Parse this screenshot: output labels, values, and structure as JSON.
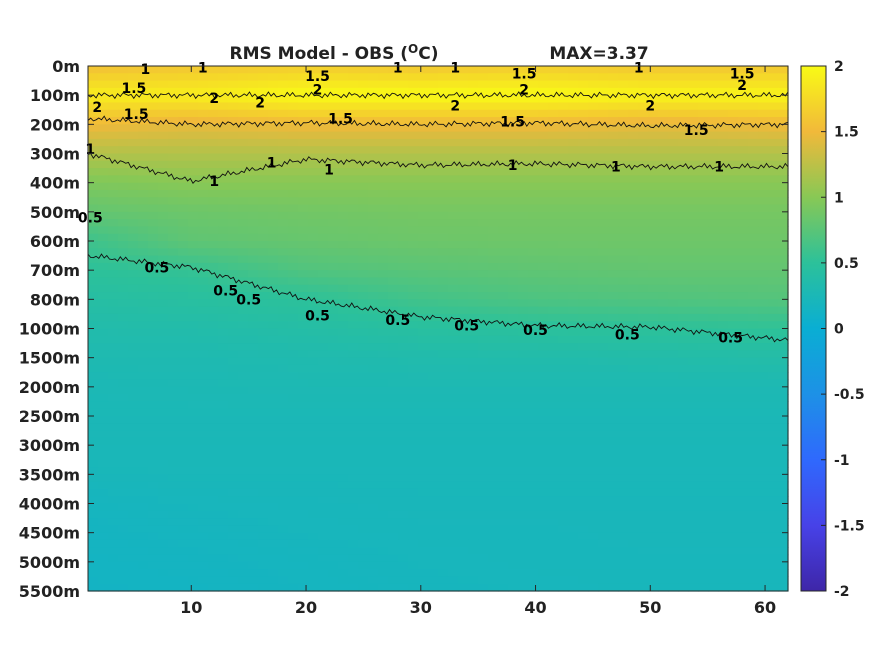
{
  "chart_data": {
    "type": "heatmap",
    "title": "RMS Model - OBS (",
    "title_unit": "O",
    "title_suffix": "C)",
    "max_label": "MAX=3.37",
    "xlim": [
      1,
      62
    ],
    "x_ticks": [
      10,
      20,
      30,
      40,
      50,
      60
    ],
    "y_ticks": [
      "0m",
      "100m",
      "200m",
      "300m",
      "400m",
      "500m",
      "600m",
      "700m",
      "800m",
      "1000m",
      "1500m",
      "2000m",
      "2500m",
      "3000m",
      "3500m",
      "4000m",
      "4500m",
      "5000m",
      "5500m"
    ],
    "colorbar": {
      "range": [
        -2,
        2
      ],
      "ticks": [
        "2",
        "1.5",
        "1",
        "0.5",
        "0",
        "-0.5",
        "-1",
        "-1.5",
        "-2"
      ],
      "colormap": "parula"
    },
    "field": {
      "depth_levels": [
        "0m",
        "100m",
        "200m",
        "300m",
        "400m",
        "500m",
        "600m",
        "700m",
        "800m",
        "1000m",
        "1500m",
        "2000m",
        "2500m",
        "3000m",
        "3500m",
        "4000m",
        "4500m",
        "5000m",
        "5500m"
      ],
      "x": [
        1,
        10,
        20,
        30,
        40,
        50,
        62
      ],
      "values": [
        [
          1.55,
          1.6,
          1.65,
          1.6,
          1.65,
          1.6,
          1.6
        ],
        [
          1.9,
          1.9,
          2.0,
          2.0,
          2.0,
          1.95,
          1.95
        ],
        [
          1.5,
          1.45,
          1.5,
          1.5,
          1.5,
          1.45,
          1.5
        ],
        [
          1.2,
          1.2,
          1.2,
          1.2,
          1.2,
          1.2,
          1.2
        ],
        [
          0.95,
          1.0,
          1.0,
          1.0,
          1.0,
          1.0,
          1.0
        ],
        [
          0.8,
          0.85,
          0.88,
          0.9,
          0.9,
          0.9,
          0.9
        ],
        [
          0.6,
          0.78,
          0.82,
          0.85,
          0.86,
          0.86,
          0.86
        ],
        [
          0.5,
          0.55,
          0.7,
          0.75,
          0.78,
          0.8,
          0.8
        ],
        [
          0.42,
          0.45,
          0.5,
          0.62,
          0.68,
          0.7,
          0.72
        ],
        [
          0.35,
          0.36,
          0.4,
          0.45,
          0.48,
          0.5,
          0.52
        ],
        [
          0.3,
          0.3,
          0.32,
          0.34,
          0.35,
          0.36,
          0.38
        ],
        [
          0.26,
          0.27,
          0.28,
          0.28,
          0.28,
          0.28,
          0.28
        ],
        [
          0.25,
          0.25,
          0.25,
          0.25,
          0.25,
          0.25,
          0.25
        ],
        [
          0.24,
          0.24,
          0.24,
          0.24,
          0.24,
          0.24,
          0.24
        ],
        [
          0.22,
          0.23,
          0.23,
          0.23,
          0.23,
          0.23,
          0.23
        ],
        [
          0.18,
          0.2,
          0.21,
          0.22,
          0.22,
          0.22,
          0.22
        ],
        [
          0.16,
          0.18,
          0.2,
          0.21,
          0.21,
          0.22,
          0.22
        ],
        [
          0.15,
          0.16,
          0.18,
          0.2,
          0.21,
          0.21,
          0.21
        ],
        [
          0.14,
          0.15,
          0.17,
          0.19,
          0.2,
          0.21,
          0.21
        ]
      ]
    },
    "contours": [
      {
        "level": "2",
        "depth_index": [
          1.0,
          1.0,
          1.0,
          1.0,
          1.0,
          1.0,
          1.0
        ]
      },
      {
        "level": "1.5",
        "depth_index": [
          1.8,
          2.0,
          1.95,
          2.0,
          1.95,
          2.05,
          2.0
        ]
      },
      {
        "level": "1",
        "depth_index": [
          3.0,
          3.95,
          3.2,
          3.4,
          3.35,
          3.45,
          3.45
        ]
      },
      {
        "level": "0.5",
        "depth_index": [
          6.5,
          6.9,
          8.0,
          8.6,
          8.9,
          8.95,
          9.4
        ]
      }
    ],
    "contour_labels": [
      {
        "text": "1",
        "x": 6,
        "depth_index": 0.1
      },
      {
        "text": "1",
        "x": 11,
        "depth_index": 0.05
      },
      {
        "text": "1.5",
        "x": 21,
        "depth_index": 0.35
      },
      {
        "text": "1",
        "x": 28,
        "depth_index": 0.05
      },
      {
        "text": "1",
        "x": 33,
        "depth_index": 0.05
      },
      {
        "text": "1.5",
        "x": 39,
        "depth_index": 0.25
      },
      {
        "text": "1",
        "x": 49,
        "depth_index": 0.05
      },
      {
        "text": "1.5",
        "x": 58,
        "depth_index": 0.25
      },
      {
        "text": "1.5",
        "x": 5,
        "depth_index": 0.75
      },
      {
        "text": "2",
        "x": 21,
        "depth_index": 0.8
      },
      {
        "text": "2",
        "x": 39,
        "depth_index": 0.8
      },
      {
        "text": "2",
        "x": 58,
        "depth_index": 0.65
      },
      {
        "text": "2",
        "x": 1.8,
        "depth_index": 1.4
      },
      {
        "text": "2",
        "x": 12,
        "depth_index": 1.1
      },
      {
        "text": "2",
        "x": 16,
        "depth_index": 1.25
      },
      {
        "text": "2",
        "x": 33,
        "depth_index": 1.35
      },
      {
        "text": "2",
        "x": 50,
        "depth_index": 1.35
      },
      {
        "text": "1.5",
        "x": 5.2,
        "depth_index": 1.65
      },
      {
        "text": "1.5",
        "x": 23,
        "depth_index": 1.8
      },
      {
        "text": "1.5",
        "x": 38,
        "depth_index": 1.9
      },
      {
        "text": "1.5",
        "x": 54,
        "depth_index": 2.2
      },
      {
        "text": "1",
        "x": 1.2,
        "depth_index": 2.85
      },
      {
        "text": "1",
        "x": 12,
        "depth_index": 3.95
      },
      {
        "text": "1",
        "x": 17,
        "depth_index": 3.3
      },
      {
        "text": "1",
        "x": 22,
        "depth_index": 3.55
      },
      {
        "text": "1",
        "x": 38,
        "depth_index": 3.4
      },
      {
        "text": "1",
        "x": 47,
        "depth_index": 3.45
      },
      {
        "text": "1",
        "x": 56,
        "depth_index": 3.45
      },
      {
        "text": "0.5",
        "x": 1.2,
        "depth_index": 5.2
      },
      {
        "text": "0.5",
        "x": 7,
        "depth_index": 6.9
      },
      {
        "text": "0.5",
        "x": 13,
        "depth_index": 7.7
      },
      {
        "text": "0.5",
        "x": 15,
        "depth_index": 8.0
      },
      {
        "text": "0.5",
        "x": 21,
        "depth_index": 8.55
      },
      {
        "text": "0.5",
        "x": 28,
        "depth_index": 8.7
      },
      {
        "text": "0.5",
        "x": 34,
        "depth_index": 8.9
      },
      {
        "text": "0.5",
        "x": 40,
        "depth_index": 9.05
      },
      {
        "text": "0.5",
        "x": 48,
        "depth_index": 9.2
      },
      {
        "text": "0.5",
        "x": 57,
        "depth_index": 9.3
      }
    ]
  }
}
